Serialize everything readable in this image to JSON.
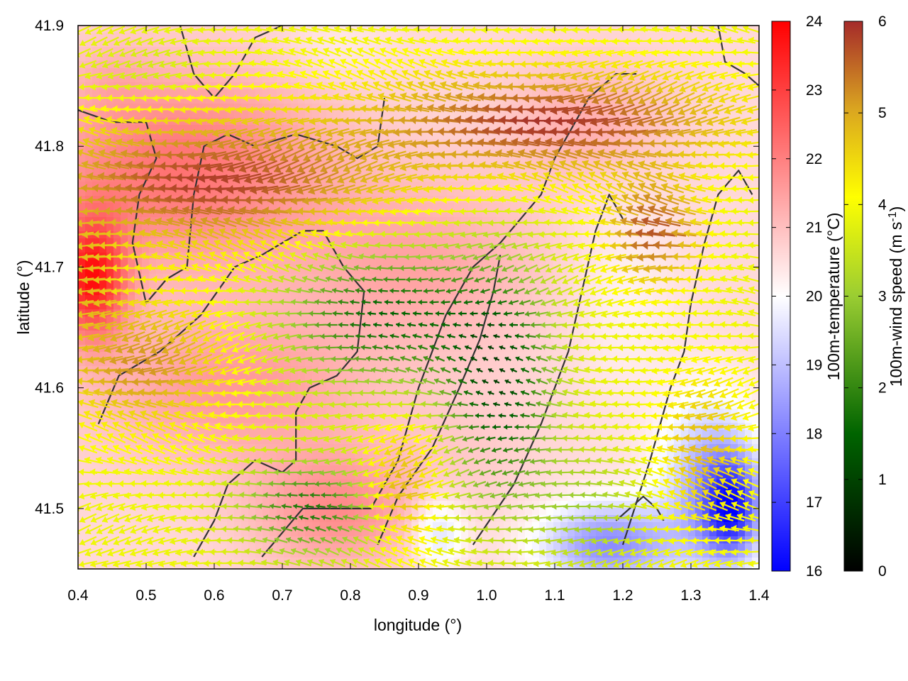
{
  "chart_data": {
    "type": "heatmap",
    "title": "",
    "xlabel": "longitude (°)",
    "ylabel": "latitude (°)",
    "xlim": [
      0.4,
      1.4
    ],
    "ylim": [
      41.45,
      41.9
    ],
    "xticks": [
      "0.4",
      "0.5",
      "0.6",
      "0.7",
      "0.8",
      "0.9",
      "1.0",
      "1.1",
      "1.2",
      "1.3",
      "1.4"
    ],
    "yticks": [
      "41.5",
      "41.6",
      "41.7",
      "41.8",
      "41.9"
    ],
    "layers": {
      "background": "100m-temperature field",
      "vectors": "100m-wind arrows, mostly from east to west",
      "contours": "dark grey terrain contour lines"
    },
    "colorbars": [
      {
        "label": "100m-temperature (°C)",
        "range": [
          16,
          24
        ],
        "ticks": [
          "16",
          "17",
          "18",
          "19",
          "20",
          "21",
          "22",
          "23",
          "24"
        ],
        "colors": [
          "#0000ff",
          "#ffffff",
          "#ff0000"
        ]
      },
      {
        "label_main": "100m-wind speed (m s",
        "label_sup": "-1",
        "label_end": ")",
        "range": [
          0,
          6
        ],
        "ticks": [
          "0",
          "1",
          "2",
          "3",
          "4",
          "5",
          "6"
        ],
        "colors": [
          "#000000",
          "#006400",
          "#9acd32",
          "#ffff00",
          "#daa520",
          "#a52a2a"
        ]
      }
    ],
    "temperature_regions": [
      {
        "lon": 0.55,
        "lat": 41.78,
        "rx": 0.22,
        "ry": 0.08,
        "temp": 22.2
      },
      {
        "lon": 0.42,
        "lat": 41.69,
        "rx": 0.05,
        "ry": 0.05,
        "temp": 23.5
      },
      {
        "lon": 0.62,
        "lat": 41.6,
        "rx": 0.2,
        "ry": 0.06,
        "temp": 21.6
      },
      {
        "lon": 0.9,
        "lat": 41.7,
        "rx": 0.18,
        "ry": 0.07,
        "temp": 21.4
      },
      {
        "lon": 0.78,
        "lat": 41.5,
        "rx": 0.12,
        "ry": 0.05,
        "temp": 21.8
      },
      {
        "lon": 0.98,
        "lat": 41.55,
        "rx": 0.1,
        "ry": 0.05,
        "temp": 20.8
      },
      {
        "lon": 1.15,
        "lat": 41.82,
        "rx": 0.12,
        "ry": 0.05,
        "temp": 21.3
      },
      {
        "lon": 0.45,
        "lat": 41.86,
        "rx": 0.06,
        "ry": 0.03,
        "temp": 20.9
      },
      {
        "lon": 1.33,
        "lat": 41.52,
        "rx": 0.07,
        "ry": 0.07,
        "temp": 18.6
      },
      {
        "lon": 1.18,
        "lat": 41.47,
        "rx": 0.1,
        "ry": 0.035,
        "temp": 18.2
      },
      {
        "lon": 1.36,
        "lat": 41.5,
        "rx": 0.04,
        "ry": 0.04,
        "temp": 17.4
      },
      {
        "lon": 1.2,
        "lat": 41.68,
        "rx": 0.08,
        "ry": 0.1,
        "temp": 20.2
      },
      {
        "lon": 0.78,
        "lat": 41.88,
        "rx": 0.08,
        "ry": 0.03,
        "temp": 20.3
      },
      {
        "lon": 0.93,
        "lat": 41.48,
        "rx": 0.04,
        "ry": 0.03,
        "temp": 19.4
      }
    ],
    "wind_regions": [
      {
        "lon": 0.6,
        "lat": 41.77,
        "rx": 0.25,
        "ry": 0.05,
        "speed": 5.8
      },
      {
        "lon": 1.1,
        "lat": 41.82,
        "rx": 0.25,
        "ry": 0.04,
        "speed": 5.9
      },
      {
        "lon": 0.5,
        "lat": 41.62,
        "rx": 0.12,
        "ry": 0.05,
        "speed": 5.0
      },
      {
        "lon": 0.85,
        "lat": 41.66,
        "rx": 0.15,
        "ry": 0.06,
        "speed": 1.2
      },
      {
        "lon": 1.02,
        "lat": 41.6,
        "rx": 0.08,
        "ry": 0.1,
        "speed": 1.0
      },
      {
        "lon": 0.74,
        "lat": 41.5,
        "rx": 0.1,
        "ry": 0.04,
        "speed": 1.4
      },
      {
        "lon": 0.42,
        "lat": 41.69,
        "rx": 0.04,
        "ry": 0.04,
        "speed": 4.3
      },
      {
        "lon": 1.25,
        "lat": 41.73,
        "rx": 0.06,
        "ry": 0.04,
        "speed": 5.6
      },
      {
        "lon": 0.5,
        "lat": 41.86,
        "rx": 0.1,
        "ry": 0.03,
        "speed": 3.0
      },
      {
        "lon": 1.32,
        "lat": 41.55,
        "rx": 0.06,
        "ry": 0.06,
        "speed": 4.5
      },
      {
        "lon": 1.15,
        "lat": 41.5,
        "rx": 0.08,
        "ry": 0.05,
        "speed": 2.5
      },
      {
        "lon": 0.88,
        "lat": 41.52,
        "rx": 0.05,
        "ry": 0.05,
        "speed": 4.8
      }
    ],
    "contours": [
      [
        [
          0.4,
          41.83
        ],
        [
          0.45,
          41.82
        ],
        [
          0.5,
          41.82
        ],
        [
          0.515,
          41.79
        ],
        [
          0.49,
          41.76
        ],
        [
          0.48,
          41.72
        ],
        [
          0.5,
          41.67
        ],
        [
          0.53,
          41.69
        ],
        [
          0.56,
          41.7
        ],
        [
          0.57,
          41.76
        ],
        [
          0.585,
          41.8
        ],
        [
          0.62,
          41.81
        ],
        [
          0.66,
          41.8
        ],
        [
          0.72,
          41.81
        ],
        [
          0.78,
          41.8
        ],
        [
          0.81,
          41.79
        ],
        [
          0.84,
          41.8
        ],
        [
          0.85,
          41.84
        ]
      ],
      [
        [
          0.43,
          41.57
        ],
        [
          0.46,
          41.61
        ],
        [
          0.52,
          41.63
        ],
        [
          0.58,
          41.66
        ],
        [
          0.63,
          41.7
        ],
        [
          0.67,
          41.71
        ],
        [
          0.7,
          41.72
        ],
        [
          0.73,
          41.73
        ],
        [
          0.76,
          41.73
        ],
        [
          0.79,
          41.7
        ],
        [
          0.82,
          41.68
        ],
        [
          0.81,
          41.63
        ],
        [
          0.78,
          41.61
        ],
        [
          0.74,
          41.6
        ],
        [
          0.72,
          41.58
        ],
        [
          0.72,
          41.54
        ],
        [
          0.7,
          41.53
        ],
        [
          0.66,
          41.54
        ],
        [
          0.62,
          41.52
        ],
        [
          0.6,
          41.49
        ],
        [
          0.57,
          41.46
        ]
      ],
      [
        [
          0.67,
          41.46
        ],
        [
          0.7,
          41.48
        ],
        [
          0.73,
          41.5
        ],
        [
          0.78,
          41.5
        ],
        [
          0.83,
          41.5
        ],
        [
          0.87,
          41.54
        ],
        [
          0.9,
          41.6
        ],
        [
          0.94,
          41.66
        ],
        [
          0.98,
          41.7
        ],
        [
          1.02,
          41.72
        ],
        [
          1.05,
          41.74
        ],
        [
          1.08,
          41.76
        ],
        [
          1.1,
          41.79
        ],
        [
          1.13,
          41.82
        ],
        [
          1.15,
          41.84
        ],
        [
          1.19,
          41.86
        ],
        [
          1.22,
          41.86
        ]
      ],
      [
        [
          0.84,
          41.47
        ],
        [
          0.87,
          41.51
        ],
        [
          0.92,
          41.55
        ],
        [
          0.96,
          41.6
        ],
        [
          0.99,
          41.64
        ],
        [
          1.01,
          41.68
        ],
        [
          1.02,
          41.71
        ]
      ],
      [
        [
          0.98,
          41.47
        ],
        [
          1.04,
          41.52
        ],
        [
          1.08,
          41.57
        ],
        [
          1.12,
          41.63
        ],
        [
          1.14,
          41.68
        ],
        [
          1.16,
          41.73
        ],
        [
          1.18,
          41.76
        ],
        [
          1.2,
          41.74
        ]
      ],
      [
        [
          1.2,
          41.47
        ],
        [
          1.24,
          41.54
        ],
        [
          1.27,
          41.6
        ],
        [
          1.29,
          41.63
        ],
        [
          1.3,
          41.67
        ],
        [
          1.32,
          41.72
        ],
        [
          1.34,
          41.76
        ],
        [
          1.37,
          41.78
        ],
        [
          1.39,
          41.76
        ]
      ],
      [
        [
          1.19,
          41.49
        ],
        [
          1.23,
          41.51
        ],
        [
          1.25,
          41.5
        ],
        [
          1.26,
          41.49
        ]
      ],
      [
        [
          0.55,
          41.9
        ],
        [
          0.57,
          41.86
        ],
        [
          0.6,
          41.84
        ],
        [
          0.63,
          41.86
        ],
        [
          0.66,
          41.89
        ],
        [
          0.7,
          41.9
        ]
      ],
      [
        [
          1.34,
          41.9
        ],
        [
          1.35,
          41.87
        ],
        [
          1.38,
          41.86
        ],
        [
          1.4,
          41.85
        ]
      ]
    ]
  }
}
